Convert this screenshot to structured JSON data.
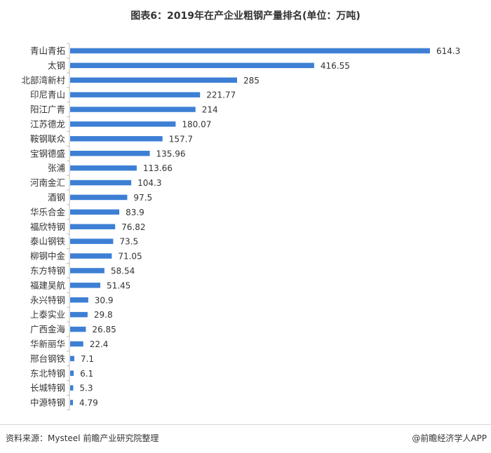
{
  "colors": {
    "bar": "#3d7fd4",
    "axis": "#bfbfbf",
    "text": "#333333"
  },
  "chart_data": {
    "type": "bar",
    "orientation": "horizontal",
    "title": "图表6：2019年在产企业粗钢产量排名(单位：万吨)",
    "xlim": [
      0,
      640
    ],
    "grid": false,
    "categories": [
      "青山青拓",
      "太钢",
      "北部湾新村",
      "印尼青山",
      "阳江广青",
      "江苏德龙",
      "鞍钢联众",
      "宝钢德盛",
      "张浦",
      "河南金汇",
      "酒钢",
      "华乐合金",
      "福欣特钢",
      "泰山钢铁",
      "柳钢中金",
      "东方特钢",
      "福建吴航",
      "永兴特钢",
      "上泰实业",
      "广西金海",
      "华新丽华",
      "邢台钢铁",
      "东北特钢",
      "长城特钢",
      "中源特钢"
    ],
    "values": [
      614.3,
      416.55,
      285,
      221.77,
      214,
      180.07,
      157.7,
      135.96,
      113.66,
      104.3,
      97.5,
      83.9,
      76.82,
      73.5,
      71.05,
      58.54,
      51.45,
      30.9,
      29.8,
      26.85,
      22.4,
      7.1,
      6.1,
      5.3,
      4.79
    ],
    "value_labels": [
      "614.3",
      "416.55",
      "285",
      "221.77",
      "214",
      "180.07",
      "157.7",
      "135.96",
      "113.66",
      "104.3",
      "97.5",
      "83.9",
      "76.82",
      "73.5",
      "71.05",
      "58.54",
      "51.45",
      "30.9",
      "29.8",
      "26.85",
      "22.4",
      "7.1",
      "6.1",
      "5.3",
      "4.79"
    ]
  },
  "footer": {
    "source": "资料来源：Mysteel 前瞻产业研究院整理",
    "brand": "@前瞻经济学人APP"
  }
}
